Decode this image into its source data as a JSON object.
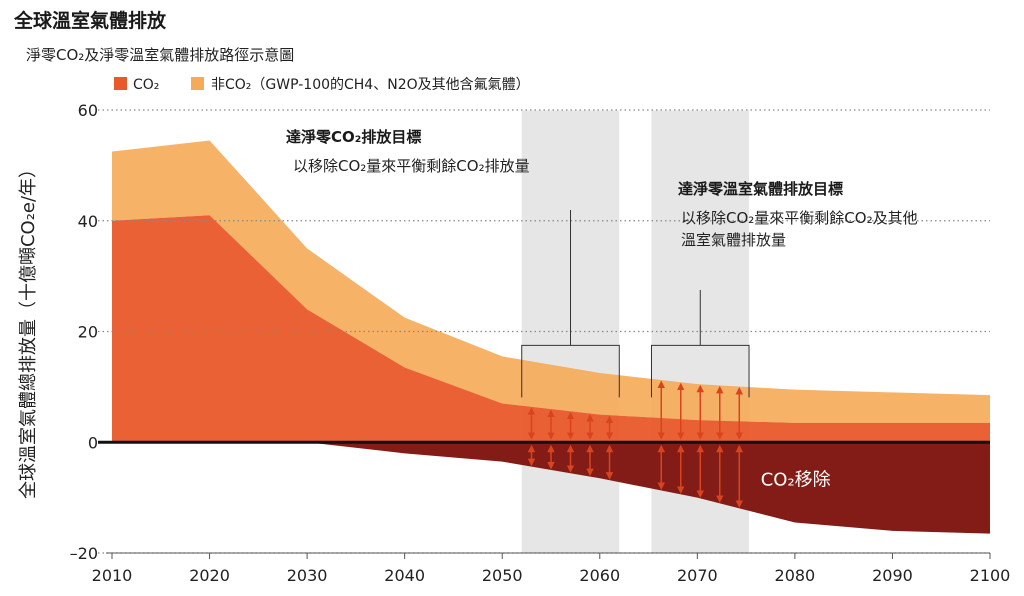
{
  "header": {
    "title": "全球溫室氣體排放",
    "subtitle": "淨零CO₂及淨零溫室氣體排放路徑示意圖"
  },
  "colors": {
    "co2": "#E8582A",
    "non_co2": "#F5AA57",
    "removal": "#7F150E",
    "arrow": "#D9441F",
    "band": "#E6E6E6",
    "grid": "#888888"
  },
  "chart_data": {
    "type": "area",
    "title": "",
    "ylabel": "全球溫室氣體總排放量（十億噸CO₂e/年）",
    "xlabel": "",
    "x": [
      2010,
      2020,
      2030,
      2040,
      2050,
      2060,
      2070,
      2080,
      2090,
      2100
    ],
    "xlim": [
      2010,
      2100
    ],
    "ylim": [
      -20,
      60
    ],
    "yticks": [
      60,
      40,
      20,
      0,
      -20
    ],
    "grid": "horizontal dotted",
    "legend_position": "top-left",
    "series": [
      {
        "name": "CO₂",
        "key": "co2",
        "values": [
          40,
          41,
          24,
          13.5,
          7,
          5,
          4,
          3.5,
          3.5,
          3.5
        ]
      },
      {
        "name": "非CO₂（GWP-100的CH4、N2O及其他含氟氣體）",
        "key": "non_co2",
        "values": [
          12.5,
          13.5,
          11,
          9,
          8.5,
          7.5,
          6.5,
          6,
          5.5,
          5
        ]
      },
      {
        "name": "CO₂移除",
        "key": "removal",
        "values": [
          0,
          0,
          0,
          -2,
          -3.5,
          -6.5,
          -10,
          -14.5,
          -16,
          -16.5
        ]
      }
    ],
    "annotations": [
      {
        "key": "co2_net_zero",
        "title": "達淨零CO₂排放目標",
        "text": [
          "以移除CO₂量來平衡剩餘CO₂排放量"
        ],
        "band": [
          2052,
          2062
        ]
      },
      {
        "key": "ghg_net_zero",
        "title": "達淨零溫室氣體排放目標",
        "text": [
          "以移除CO₂量來平衡剩餘CO₂及其他",
          "溫室氣體排放量"
        ],
        "band": [
          2065.3,
          2075.3
        ]
      }
    ],
    "removal_label": "CO₂移除"
  }
}
